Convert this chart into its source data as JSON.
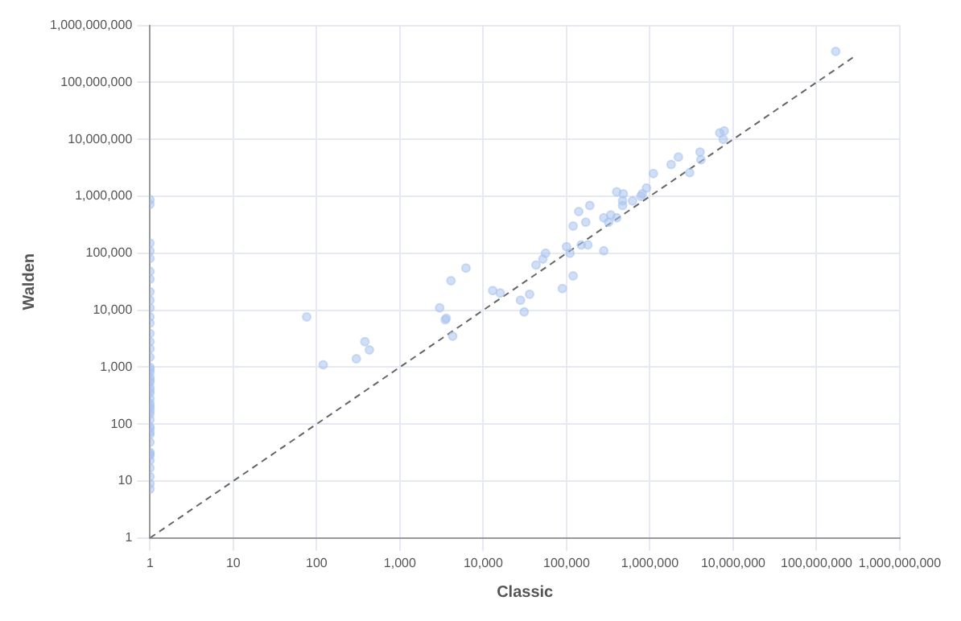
{
  "chart_data": {
    "type": "scatter",
    "xlabel": "Classic",
    "ylabel": "Walden",
    "log": "xy",
    "grid": true,
    "legend": false,
    "marker": "circle",
    "xlim": [
      1,
      1000000000
    ],
    "ylim": [
      1,
      1000000000
    ],
    "xticks": [
      1,
      10,
      100,
      {
        "value": 1000,
        "label": "1,000"
      },
      {
        "value": 10000,
        "label": "10,000"
      },
      {
        "value": 100000,
        "label": "100,000"
      },
      {
        "value": 1000000,
        "label": "1,000,000"
      },
      {
        "value": 10000000,
        "label": "10,000,000"
      },
      {
        "value": 100000000,
        "label": "100,000,000"
      },
      {
        "value": 1000000000,
        "label": "1,000,000,000"
      }
    ],
    "yticks": [
      1,
      10,
      100,
      {
        "value": 1000,
        "label": "1,000"
      },
      {
        "value": 10000,
        "label": "10,000"
      },
      {
        "value": 100000,
        "label": "100,000"
      },
      {
        "value": 1000000,
        "label": "1,000,000"
      },
      {
        "value": 10000000,
        "label": "10,000,000"
      },
      {
        "value": 100000000,
        "label": "100,000,000"
      },
      {
        "value": 1000000000,
        "label": "1,000,000,000"
      }
    ],
    "series": [
      {
        "type": "scatter",
        "color": "#a9c2ee",
        "x": [
          1,
          1,
          1,
          1,
          1,
          1,
          1,
          1,
          1,
          1,
          1,
          1,
          1,
          1,
          1,
          1,
          1,
          1,
          1,
          1,
          1,
          1,
          1,
          1,
          1,
          1,
          1,
          1,
          1,
          1,
          1,
          1,
          1,
          1,
          1,
          1,
          1,
          1,
          1,
          1,
          1,
          1,
          1,
          1,
          1,
          76,
          120,
          300,
          380,
          430,
          3000,
          3500,
          3600,
          4100,
          4300,
          6200,
          13000,
          16000,
          28000,
          31000,
          36000,
          43000,
          52000,
          56000,
          89000,
          100000,
          110000,
          120000,
          120000,
          140000,
          150000,
          170000,
          180000,
          190000,
          280000,
          280000,
          320000,
          340000,
          400000,
          400000,
          470000,
          470000,
          480000,
          620000,
          780000,
          810000,
          910000,
          1100000,
          1800000,
          2200000,
          3000000,
          4000000,
          4100000,
          6900000,
          7800000,
          7600000,
          170000000
        ],
        "values": [
          870000,
          720000,
          150000,
          110000,
          81000,
          48000,
          35000,
          21000,
          15000,
          11000,
          7600,
          5900,
          3900,
          2800,
          2100,
          1500,
          1000,
          810,
          660,
          540,
          440,
          350,
          280,
          230,
          190,
          150,
          120,
          89,
          66,
          48,
          32,
          28,
          23,
          17,
          12,
          8.9,
          7.2,
          910,
          590,
          390,
          210,
          170,
          85,
          72,
          30,
          7600,
          1100,
          1400,
          2800,
          2000,
          11000,
          6800,
          7200,
          33000,
          3500,
          55000,
          22000,
          20000,
          15000,
          9300,
          19000,
          62000,
          79000,
          100000,
          24000,
          130000,
          100000,
          300000,
          40000,
          540000,
          140000,
          350000,
          140000,
          690000,
          420000,
          110000,
          350000,
          470000,
          420000,
          1200000,
          830000,
          690000,
          1100000,
          830000,
          1000000,
          1100000,
          1400000,
          2500000,
          3600000,
          4900000,
          2600000,
          6000000,
          4400000,
          13000000,
          14000000,
          10000000,
          350000000
        ]
      },
      {
        "type": "line",
        "color": "#666666",
        "line_style": "dashed",
        "marker": "none",
        "x": [
          1,
          300000000
        ],
        "values": [
          1,
          300000000
        ]
      }
    ]
  }
}
